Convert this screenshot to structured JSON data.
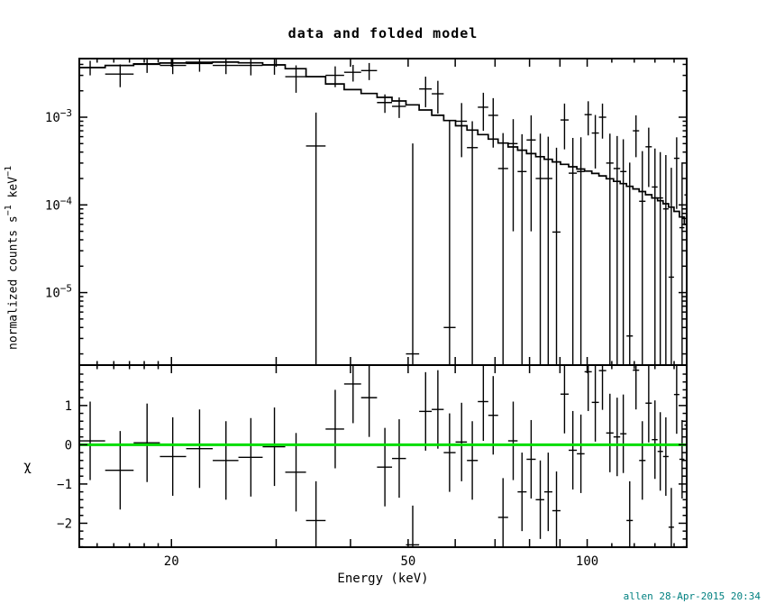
{
  "header": {
    "title": "data and folded model"
  },
  "axes": {
    "x_label": "Energy (keV)",
    "y_label_segments": [
      [
        "t",
        "normalized counts s"
      ],
      [
        "sup",
        "−1"
      ],
      [
        "t",
        " keV"
      ],
      [
        "sup",
        "−1"
      ]
    ],
    "chi_label": "χ"
  },
  "annotations": {
    "timestamp": "allen 28-Apr-2015 20:34",
    "timestamp_color": "#008080"
  },
  "colors": {
    "data": "#000000",
    "model": "#000000",
    "zero_line": "#00dd00",
    "frame": "#000000"
  },
  "chart_data": [
    {
      "id": "spectrum",
      "type": "scatter",
      "title": "data and folded model",
      "xlabel": "Energy (keV)",
      "ylabel": "normalized counts s^-1 keV^-1",
      "xscale": "log",
      "yscale": "log",
      "xlim": [
        14.0,
        147.0
      ],
      "ylim": [
        1.49e-06,
        0.00466
      ],
      "grid": false,
      "legend": false,
      "x_major_ticks": [
        20,
        30,
        40,
        50,
        60,
        70,
        80,
        90,
        100
      ],
      "x_minor_ticks": [
        15,
        16,
        17,
        18,
        19,
        110,
        120,
        130,
        140
      ],
      "x_tick_labels": [
        {
          "value": 20,
          "label": "20"
        },
        {
          "value": 50,
          "label": "50"
        },
        {
          "value": 100,
          "label": "100"
        }
      ],
      "y_tick_labels": [
        {
          "value": 0.001,
          "base": "10",
          "exp": "−3"
        },
        {
          "value": 0.0001,
          "base": "10",
          "exp": "−4"
        },
        {
          "value": 1e-05,
          "base": "10",
          "exp": "−5"
        }
      ],
      "points": {
        "energy_keV": [
          14.6,
          16.4,
          18.2,
          20.1,
          22.3,
          24.7,
          27.2,
          29.8,
          32.4,
          35.0,
          37.7,
          40.4,
          43.0,
          45.7,
          48.3,
          50.9,
          53.5,
          56.1,
          58.7,
          61.5,
          64.1,
          66.9,
          69.5,
          72.2,
          75.1,
          77.7,
          80.5,
          83.4,
          86.0,
          88.8,
          91.6,
          94.6,
          97.6,
          100.4,
          103.2,
          106.1,
          109.2,
          112.3,
          115.0,
          117.9,
          120.8,
          123.8,
          126.9,
          130.0,
          132.7,
          135.6,
          138.5,
          141.4,
          144.4,
          147.0
        ],
        "rate": [
          0.0037,
          0.0031,
          0.004,
          0.0039,
          0.0041,
          0.0039,
          0.0039,
          0.00395,
          0.0029,
          0.00047,
          0.003,
          0.00325,
          0.0034,
          0.00147,
          0.00133,
          2e-06,
          0.0021,
          0.00185,
          4e-06,
          0.0009,
          0.00045,
          0.0013,
          0.00105,
          0.00026,
          0.0005,
          0.00024,
          0.00055,
          0.0002,
          0.0002,
          4.9e-05,
          0.00093,
          0.00023,
          0.00024,
          0.00107,
          0.00066,
          0.001,
          0.0003,
          0.00026,
          0.00024,
          3.2e-06,
          0.0007,
          0.00011,
          0.00046,
          0.00016,
          0.00012,
          9e-05,
          1.5e-05,
          0.00034,
          5.5e-05,
          0.00013
        ],
        "rate_err": [
          0.0007,
          0.0009,
          0.0008,
          0.0008,
          0.0008,
          0.0008,
          0.0009,
          0.0009,
          0.001,
          0.00066,
          0.0008,
          0.0007,
          0.00075,
          0.00035,
          0.00035,
          0.0005,
          0.0008,
          0.00075,
          0.0009,
          0.00055,
          0.00045,
          0.0006,
          0.0006,
          0.0004,
          0.00045,
          0.0004,
          0.0005,
          0.00045,
          0.0004,
          0.0004,
          0.0005,
          0.00035,
          0.00035,
          0.00045,
          0.0004,
          0.00043,
          0.00035,
          0.00035,
          0.00032,
          0.0003,
          0.00035,
          0.0003,
          0.0003,
          0.00028,
          0.00028,
          0.00028,
          0.00025,
          0.00025,
          0.00025,
          0.0002
        ]
      },
      "model": {
        "energy_keV": [
          14,
          16,
          18,
          20,
          23,
          26,
          29,
          32,
          35,
          38,
          41,
          44,
          47,
          50,
          54,
          58,
          62,
          66,
          70,
          75,
          80,
          85,
          90,
          95,
          100,
          105,
          110,
          115,
          120,
          125,
          130,
          135,
          140,
          144,
          147
        ],
        "rate": [
          0.0036,
          0.00385,
          0.00405,
          0.00415,
          0.00425,
          0.00425,
          0.00405,
          0.0037,
          0.0029,
          0.00235,
          0.002,
          0.0018,
          0.0016,
          0.00145,
          0.00118,
          0.00095,
          0.00078,
          0.00066,
          0.00055,
          0.00046,
          0.00039,
          0.00034,
          0.0003,
          0.00027,
          0.000245,
          0.00022,
          0.000195,
          0.000175,
          0.000155,
          0.000138,
          0.00012,
          0.000105,
          9e-05,
          7.5e-05,
          6e-05
        ]
      }
    },
    {
      "id": "residuals",
      "type": "scatter",
      "ylabel": "χ",
      "xlabel": "Energy (keV)",
      "xscale": "log",
      "yscale": "linear",
      "xlim": [
        14.0,
        147.0
      ],
      "ylim": [
        -2.61,
        2.03
      ],
      "zero_line": 0,
      "y_major_ticks": [
        {
          "value": 1,
          "label": "1"
        },
        {
          "value": 0,
          "label": "0"
        },
        {
          "value": -1,
          "label": "−1"
        },
        {
          "value": -2,
          "label": "−2"
        }
      ],
      "y_minor_step": 0.2,
      "chi": [
        0.1,
        -0.65,
        0.05,
        -0.3,
        -0.1,
        -0.4,
        -0.32,
        -0.05,
        -0.7,
        -1.93,
        0.4,
        1.55,
        1.2,
        -0.57,
        -0.35,
        -2.55,
        0.85,
        0.9,
        -0.2,
        0.07,
        -0.4,
        1.1,
        0.75,
        -1.85,
        0.1,
        -1.2,
        -0.37,
        -1.4,
        -1.2,
        -1.68,
        1.29,
        -0.14,
        -0.23,
        1.86,
        1.08,
        1.89,
        0.3,
        0.2,
        0.28,
        -1.93,
        1.9,
        -0.4,
        1.06,
        0.13,
        -0.17,
        -0.3,
        -2.1,
        1.28,
        -0.37,
        0.5
      ],
      "chi_err": 1.0
    }
  ]
}
